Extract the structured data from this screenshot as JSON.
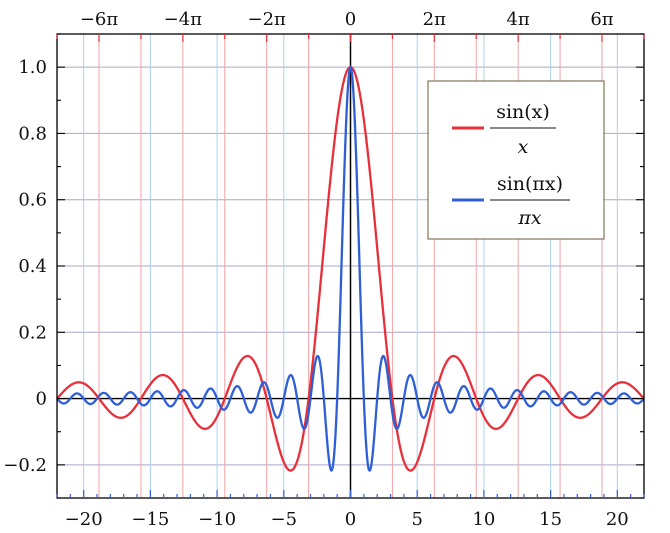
{
  "chart_data": {
    "type": "line",
    "title": "",
    "xlabel": "",
    "ylabel": "",
    "xlim": [
      -22,
      22
    ],
    "ylim": [
      -0.3,
      1.1
    ],
    "x_ticks": [
      -20,
      -15,
      -10,
      -5,
      0,
      5,
      10,
      15,
      20
    ],
    "x_tick_labels": [
      "−20",
      "−15",
      "−10",
      "−5",
      "0",
      "5",
      "10",
      "15",
      "20"
    ],
    "y_ticks": [
      -0.2,
      0,
      0.2,
      0.4,
      0.6,
      0.8,
      1.0
    ],
    "y_tick_labels": [
      "−0.2",
      "0",
      "0.2",
      "0.4",
      "0.6",
      "0.8",
      "1.0"
    ],
    "top_axis": {
      "ticks": [
        -18.8496,
        -12.5664,
        -6.2832,
        0,
        6.2832,
        12.5664,
        18.8496
      ],
      "labels": [
        "−6π",
        "−4π",
        "−2π",
        "0",
        "2π",
        "4π",
        "6π"
      ],
      "minor_ticks_pi_multiples": [
        -7,
        -5,
        -3,
        -1,
        1,
        3,
        5,
        7
      ]
    },
    "vertical_reference_lines": {
      "red_at_pi_multiples": [
        -7,
        -6,
        -5,
        -4,
        -3,
        -2,
        -1,
        1,
        2,
        3,
        4,
        5,
        6,
        7
      ],
      "blue_at_integers": [
        -20,
        -15,
        -10,
        -5,
        5,
        10,
        15,
        20
      ]
    },
    "grid": "horizontal at y ticks",
    "series": [
      {
        "name_num": "sin(x)",
        "name_den": "x",
        "function": "sin(x)/x",
        "color": "#e8303a"
      },
      {
        "name_num": "sin(πx)",
        "name_den": "πx",
        "function": "sin(pi x)/(pi x)",
        "color": "#2f5fd6"
      }
    ],
    "legend_position": "top-right",
    "colors": {
      "red": "#e8303a",
      "blue": "#2f5fd6",
      "grid": "#a9a7c9",
      "pink": "#f2a3a8",
      "light_blue": "#a9d2ee",
      "legend_border": "#6b5b3a"
    }
  }
}
